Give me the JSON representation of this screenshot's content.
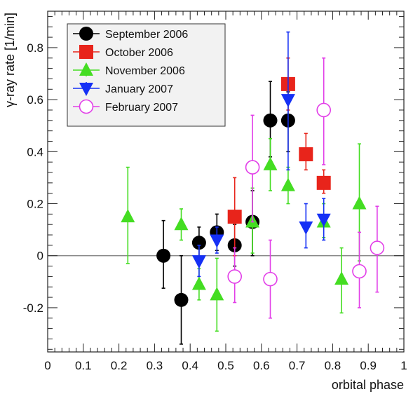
{
  "chart_data": {
    "type": "scatter",
    "xlabel": "orbital phase",
    "ylabel": "γ-ray rate [1/min]",
    "xlim": [
      0,
      1
    ],
    "ylim": [
      -0.37,
      0.94
    ],
    "x_ticks": [
      0,
      0.1,
      0.2,
      0.3,
      0.4,
      0.5,
      0.6,
      0.7,
      0.8,
      0.9,
      1
    ],
    "x_tick_labels": [
      "0",
      "0.1",
      "0.2",
      "0.3",
      "0.4",
      "0.5",
      "0.6",
      "0.7",
      "0.8",
      "0.9",
      "1"
    ],
    "y_ticks": [
      -0.2,
      0,
      0.2,
      0.4,
      0.6,
      0.8
    ],
    "y_tick_labels": [
      "-0.2",
      "0",
      "0.2",
      "0.4",
      "0.6",
      "0.8"
    ],
    "zero_line": true,
    "grid": false,
    "legend_position": "top-left",
    "series": [
      {
        "name": "September 2006",
        "color": "#000000",
        "marker": "filled-circle",
        "points": [
          {
            "x": 0.325,
            "y": 0.0,
            "lo": -0.125,
            "hi": 0.135
          },
          {
            "x": 0.375,
            "y": -0.17,
            "lo": -0.34,
            "hi": 0.0
          },
          {
            "x": 0.425,
            "y": 0.05,
            "lo": -0.01,
            "hi": 0.11
          },
          {
            "x": 0.475,
            "y": 0.09,
            "lo": 0.02,
            "hi": 0.16
          },
          {
            "x": 0.525,
            "y": 0.04,
            "lo": -0.04,
            "hi": 0.12
          },
          {
            "x": 0.575,
            "y": 0.13,
            "lo": 0.0,
            "hi": 0.25
          },
          {
            "x": 0.625,
            "y": 0.52,
            "lo": 0.38,
            "hi": 0.67
          },
          {
            "x": 0.675,
            "y": 0.52,
            "lo": 0.4,
            "hi": 0.63
          }
        ]
      },
      {
        "name": "October 2006",
        "color": "#e8241b",
        "marker": "filled-square",
        "points": [
          {
            "x": 0.525,
            "y": 0.15,
            "lo": 0.0,
            "hi": 0.3
          },
          {
            "x": 0.675,
            "y": 0.66,
            "lo": 0.56,
            "hi": 0.76
          },
          {
            "x": 0.725,
            "y": 0.39,
            "lo": 0.33,
            "hi": 0.47
          },
          {
            "x": 0.775,
            "y": 0.28,
            "lo": 0.24,
            "hi": 0.33
          }
        ]
      },
      {
        "name": "November 2006",
        "color": "#44dd22",
        "marker": "filled-triangle-up",
        "points": [
          {
            "x": 0.225,
            "y": 0.15,
            "lo": -0.03,
            "hi": 0.34
          },
          {
            "x": 0.375,
            "y": 0.12,
            "lo": 0.06,
            "hi": 0.18
          },
          {
            "x": 0.425,
            "y": -0.11,
            "lo": -0.17,
            "hi": -0.05
          },
          {
            "x": 0.475,
            "y": -0.15,
            "lo": -0.29,
            "hi": -0.01
          },
          {
            "x": 0.575,
            "y": 0.13,
            "lo": 0.01,
            "hi": 0.26
          },
          {
            "x": 0.625,
            "y": 0.35,
            "lo": 0.25,
            "hi": 0.45
          },
          {
            "x": 0.675,
            "y": 0.27,
            "lo": 0.2,
            "hi": 0.34
          },
          {
            "x": 0.775,
            "y": 0.13,
            "lo": 0.07,
            "hi": 0.2
          },
          {
            "x": 0.825,
            "y": -0.09,
            "lo": -0.22,
            "hi": 0.03
          },
          {
            "x": 0.875,
            "y": 0.2,
            "lo": -0.02,
            "hi": 0.43
          }
        ]
      },
      {
        "name": "January 2007",
        "color": "#1530f5",
        "marker": "filled-triangle-down",
        "points": [
          {
            "x": 0.425,
            "y": -0.02,
            "lo": -0.08,
            "hi": 0.04
          },
          {
            "x": 0.475,
            "y": 0.06,
            "lo": 0.01,
            "hi": 0.11
          },
          {
            "x": 0.675,
            "y": 0.6,
            "lo": 0.33,
            "hi": 0.86
          },
          {
            "x": 0.725,
            "y": 0.11,
            "lo": 0.03,
            "hi": 0.2
          },
          {
            "x": 0.775,
            "y": 0.14,
            "lo": 0.06,
            "hi": 0.22
          }
        ]
      },
      {
        "name": "February 2007",
        "color": "#e23ee8",
        "marker": "open-circle",
        "points": [
          {
            "x": 0.525,
            "y": -0.08,
            "lo": -0.18,
            "hi": 0.03
          },
          {
            "x": 0.575,
            "y": 0.34,
            "lo": 0.13,
            "hi": 0.54
          },
          {
            "x": 0.625,
            "y": -0.09,
            "lo": -0.24,
            "hi": 0.06
          },
          {
            "x": 0.775,
            "y": 0.56,
            "lo": 0.35,
            "hi": 0.76
          },
          {
            "x": 0.875,
            "y": -0.06,
            "lo": -0.2,
            "hi": 0.09
          },
          {
            "x": 0.925,
            "y": 0.03,
            "lo": -0.14,
            "hi": 0.19
          }
        ]
      }
    ]
  }
}
